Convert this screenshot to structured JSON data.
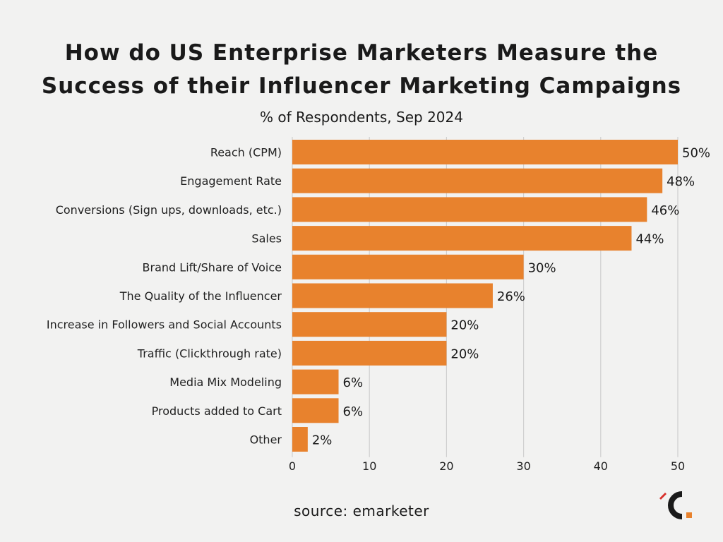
{
  "chart_data": {
    "type": "bar",
    "orientation": "horizontal",
    "title": "How do US Enterprise Marketers Measure the Success of their Influencer Marketing Campaigns",
    "title_lines": [
      "How do US Enterprise Marketers Measure the",
      "Success of their Influencer Marketing Campaigns"
    ],
    "subtitle": "% of Respondents, Sep 2024",
    "categories": [
      "Reach (CPM)",
      "Engagement Rate",
      "Conversions (Sign ups, downloads, etc.)",
      "Sales",
      "Brand Lift/Share of Voice",
      "The Quality of the Influencer",
      "Increase in Followers and Social Accounts",
      "Traffic (Clickthrough rate)",
      "Media Mix Modeling",
      "Products added to Cart",
      "Other"
    ],
    "values": [
      50,
      48,
      46,
      44,
      30,
      26,
      20,
      20,
      6,
      6,
      2
    ],
    "value_labels": [
      "50%",
      "48%",
      "46%",
      "44%",
      "30%",
      "26%",
      "20%",
      "20%",
      "6%",
      "6%",
      "2%"
    ],
    "xlim": [
      0,
      50
    ],
    "xticks": [
      0,
      10,
      20,
      30,
      40,
      50
    ],
    "xlabel": "",
    "ylabel": "",
    "grid": "vertical",
    "legend": "none",
    "bar_color": "#e8822d",
    "grid_color": "#cfcfcf"
  },
  "source": "source: emarketer",
  "logo": {
    "icon": "c-logo-icon",
    "color": "#1a1a1a",
    "accent": "#e8822d",
    "mark_color": "#d8302b"
  }
}
